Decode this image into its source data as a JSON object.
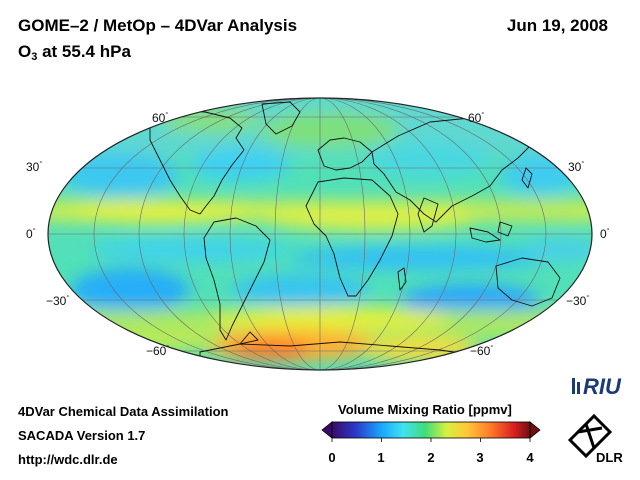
{
  "header": {
    "title": "GOME–2 / MetOp – 4DVar Analysis",
    "subtitle_species": "O",
    "subtitle_sub": "3",
    "subtitle_rest": " at 55.4 hPa",
    "date": "Jun 19, 2008"
  },
  "map": {
    "projection": "Hammer/Mollweide global",
    "lat_labels_left": [
      "60",
      "30",
      "0",
      "−30",
      "−60"
    ],
    "lat_labels_right": [
      "60",
      "30",
      "0",
      "−30",
      "−60"
    ],
    "degree_symbol": "°"
  },
  "footer": {
    "line1": "4DVar Chemical Data Assimilation",
    "line2": "SACADA Version 1.7",
    "line3": "http://wdc.dlr.de"
  },
  "colorbar": {
    "title": "Volume Mixing Ratio [ppmv]",
    "ticks": [
      "0",
      "1",
      "2",
      "3",
      "4"
    ],
    "min": 0,
    "max": 4,
    "colors": [
      "#3a0a6a",
      "#2a3ac8",
      "#1aa6ff",
      "#3fe4f0",
      "#3fdc7a",
      "#d8f040",
      "#ffc83a",
      "#ff7a2a",
      "#d82020",
      "#701010"
    ]
  },
  "logos": {
    "riu": "RIU",
    "dlr": "DLR"
  }
}
